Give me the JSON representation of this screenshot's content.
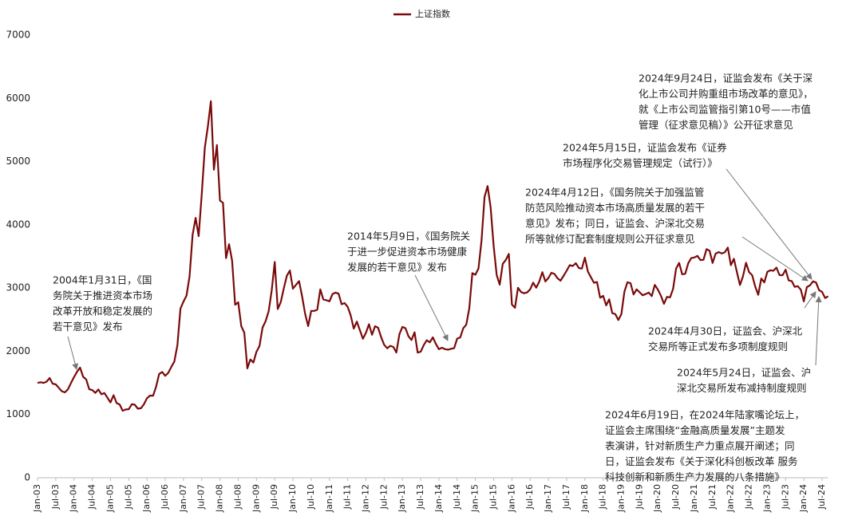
{
  "chart_data": {
    "type": "line",
    "ylim": [
      0,
      7000
    ],
    "yticks": [
      0,
      1000,
      2000,
      3000,
      4000,
      5000,
      6000,
      7000
    ],
    "categories": [
      "Jan-03",
      null,
      null,
      null,
      null,
      null,
      "Jul-03",
      null,
      null,
      null,
      null,
      null,
      "Jan-04",
      null,
      null,
      null,
      null,
      null,
      "Jul-04",
      null,
      null,
      null,
      null,
      null,
      "Jan-05",
      null,
      null,
      null,
      null,
      null,
      "Jul-05",
      null,
      null,
      null,
      null,
      null,
      "Jan-06",
      null,
      null,
      null,
      null,
      null,
      "Jul-06",
      null,
      null,
      null,
      null,
      null,
      "Jan-07",
      null,
      null,
      null,
      null,
      null,
      "Jul-07",
      null,
      null,
      null,
      null,
      null,
      "Jan-08",
      null,
      null,
      null,
      null,
      null,
      "Jul-08",
      null,
      null,
      null,
      null,
      null,
      "Jan-09",
      null,
      null,
      null,
      null,
      null,
      "Jul-09",
      null,
      null,
      null,
      null,
      null,
      "Jan-10",
      null,
      null,
      null,
      null,
      null,
      "Jul-10",
      null,
      null,
      null,
      null,
      null,
      "Jan-11",
      null,
      null,
      null,
      null,
      null,
      "Jul-11",
      null,
      null,
      null,
      null,
      null,
      "Jan-12",
      null,
      null,
      null,
      null,
      null,
      "Jul-12",
      null,
      null,
      null,
      null,
      null,
      "Jan-13",
      null,
      null,
      null,
      null,
      null,
      "Jul-13",
      null,
      null,
      null,
      null,
      null,
      "Jan-14",
      null,
      null,
      null,
      null,
      null,
      "Jul-14",
      null,
      null,
      null,
      null,
      null,
      "Jan-15",
      null,
      null,
      null,
      null,
      null,
      "Jul-15",
      null,
      null,
      null,
      null,
      null,
      "Jan-16",
      null,
      null,
      null,
      null,
      null,
      "Jul-16",
      null,
      null,
      null,
      null,
      null,
      "Jan-17",
      null,
      null,
      null,
      null,
      null,
      "Jul-17",
      null,
      null,
      null,
      null,
      null,
      "Jan-18",
      null,
      null,
      null,
      null,
      null,
      "Jul-18",
      null,
      null,
      null,
      null,
      null,
      "Jan-19",
      null,
      null,
      null,
      null,
      null,
      "Jul-19",
      null,
      null,
      null,
      null,
      null,
      "Jan-20",
      null,
      null,
      null,
      null,
      null,
      "Jul-20",
      null,
      null,
      null,
      null,
      null,
      "Jan-21",
      null,
      null,
      null,
      null,
      null,
      "Jul-21",
      null,
      null,
      null,
      null,
      null,
      "Jan-22",
      null,
      null,
      null,
      null,
      null,
      "Jul-22",
      null,
      null,
      null,
      null,
      null,
      "Jan-23",
      null,
      null,
      null,
      null,
      null,
      "Jul-23",
      null,
      null,
      null,
      null,
      null,
      "Jan-24",
      null,
      null,
      null,
      null,
      null,
      "Jul-24",
      null,
      null
    ],
    "series": [
      {
        "name": "上证指数",
        "color": "#7a0a0a",
        "values": [
          1500,
          1510,
          1500,
          1520,
          1576,
          1487,
          1476,
          1421,
          1367,
          1349,
          1397,
          1497,
          1590,
          1675,
          1742,
          1595,
          1555,
          1399,
          1386,
          1342,
          1396,
          1320,
          1340,
          1266,
          1191,
          1306,
          1181,
          1159,
          1060,
          1080,
          1083,
          1162,
          1155,
          1092,
          1099,
          1161,
          1258,
          1299,
          1298,
          1440,
          1641,
          1672,
          1612,
          1658,
          1752,
          1837,
          2099,
          2675,
          2786,
          2881,
          3183,
          3841,
          4109,
          3820,
          4471,
          5218,
          5552,
          5954,
          4871,
          5262,
          4383,
          4348,
          3472,
          3693,
          3433,
          2736,
          2775,
          2397,
          2293,
          1729,
          1871,
          1821,
          1991,
          2082,
          2373,
          2477,
          2632,
          2959,
          3412,
          2667,
          2779,
          2996,
          3195,
          3277,
          2989,
          3051,
          3109,
          2870,
          2592,
          2398,
          2638,
          2639,
          2656,
          2979,
          2820,
          2808,
          2790,
          2905,
          2928,
          2911,
          2743,
          2762,
          2701,
          2567,
          2359,
          2468,
          2333,
          2199,
          2292,
          2428,
          2262,
          2396,
          2372,
          2225,
          2103,
          2047,
          2086,
          2068,
          1980,
          2269,
          2385,
          2365,
          2236,
          2178,
          2300,
          1979,
          1993,
          2098,
          2175,
          2141,
          2220,
          2116,
          2033,
          2056,
          2033,
          2026,
          2039,
          2048,
          2201,
          2217,
          2364,
          2420,
          2683,
          3235,
          3210,
          3310,
          3748,
          4441,
          4612,
          4277,
          3664,
          3206,
          3053,
          3383,
          3445,
          3539,
          2738,
          2688,
          3004,
          2938,
          2917,
          2930,
          2979,
          3085,
          3005,
          3100,
          3250,
          3104,
          3159,
          3242,
          3223,
          3155,
          3117,
          3192,
          3273,
          3361,
          3349,
          3393,
          3317,
          3307,
          3481,
          3259,
          3169,
          3082,
          3095,
          2847,
          2876,
          2725,
          2821,
          2603,
          2588,
          2494,
          2585,
          2941,
          3091,
          3078,
          2899,
          2979,
          2933,
          2886,
          2905,
          2929,
          2872,
          3050,
          2977,
          2880,
          2750,
          2860,
          2852,
          2985,
          3310,
          3396,
          3218,
          3225,
          3392,
          3473,
          3483,
          3509,
          3442,
          3447,
          3615,
          3591,
          3397,
          3544,
          3568,
          3547,
          3564,
          3640,
          3361,
          3462,
          3252,
          3047,
          3186,
          3399,
          3253,
          3202,
          3024,
          2893,
          3151,
          3089,
          3255,
          3280,
          3273,
          3323,
          3205,
          3202,
          3291,
          3120,
          3110,
          3018,
          3030,
          2975,
          2789,
          3015,
          3041,
          3105,
          3087,
          2967,
          2939,
          2842,
          2870
        ]
      }
    ],
    "annotations": [
      {
        "lines": [
          "2004年1月31日，《国",
          "务院关于推进资本市场",
          "改革开放和稳定发展的",
          "若干意见》发布"
        ]
      },
      {
        "lines": [
          "2014年5月9日，《国务院关",
          "于进一步促进资本市场健康",
          "发展的若干意见》发布"
        ]
      },
      {
        "lines": [
          "2024年9月24日，证监会发布《关于深",
          "化上市公司并购重组市场改革的意见》，",
          "就《上市公司监管指引第10号——市值",
          "管理（征求意见稿）》公开征求意见"
        ]
      },
      {
        "lines": [
          "2024年5月15日，证监会发布《证券",
          "市场程序化交易管理规定（试行）》"
        ]
      },
      {
        "lines": [
          "2024年4月12日，《国务院关于加强监管",
          "防范风险推动资本市场高质量发展的若干",
          "意见》发布；同日，证监会、沪深北交易",
          "所等就修订配套制度规则公开征求意见"
        ]
      },
      {
        "lines": [
          "2024年4月30日，证监会、沪深北",
          "交易所等正式发布多项制度规则"
        ]
      },
      {
        "lines": [
          "2024年5月24日，证监会、沪",
          "深北交易所发布减持制度规则"
        ]
      },
      {
        "lines": [
          "2024年6月19日，在2024年陆家嘴论坛上，",
          "证监会主席围绕“金融高质量发展”主题发",
          "表演讲，针对新质生产力重点展开阐述；同",
          "日，证监会发布《关于深化科创板改革 服务",
          "科技创新和新质生产力发展的八条措施》"
        ]
      }
    ]
  }
}
